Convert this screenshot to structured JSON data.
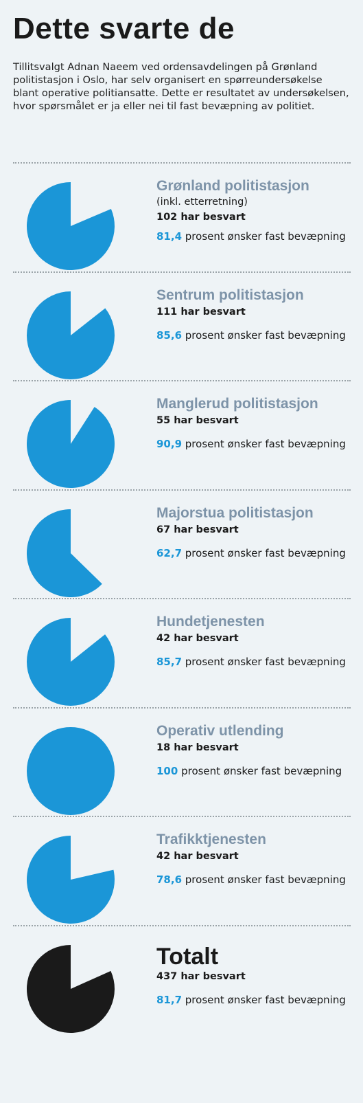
{
  "title": "Dette svarte de",
  "intro": "Tillitsvalgt Adnan Naeem ved ordensavdelingen på Grønland politistasjon i Oslo, har selv organisert en spørreundersøkelse blant operative politiansatte. Dette er resultatet av undersøkelsen, hvor spørsmålet er ja eller nei til fast bevæpning av politiet.",
  "colors": {
    "pie": "#1b96d7",
    "total_pie": "#1a1a1a",
    "station_label": "#7d93a8",
    "percent": "#1b96d7"
  },
  "pct_suffix": "prosent ønsker fast bevæpning",
  "chart_data": {
    "type": "pie",
    "units": "prosent ønsker fast bevæpning",
    "series": [
      {
        "name": "Grønland politistasjon",
        "note": "(inkl. etterretning)",
        "respondents_text": "102 har besvart",
        "percent_text": "81,4",
        "value": 81.4
      },
      {
        "name": "Sentrum politistasjon",
        "respondents_text": "111 har besvart",
        "percent_text": "85,6",
        "value": 85.6
      },
      {
        "name": "Manglerud politistasjon",
        "respondents_text": "55 har besvart",
        "percent_text": "90,9",
        "value": 90.9
      },
      {
        "name": "Majorstua politistasjon",
        "respondents_text": "67 har besvart",
        "percent_text": "62,7",
        "value": 62.7
      },
      {
        "name": "Hundetjenesten",
        "respondents_text": "42 har besvart",
        "percent_text": "85,7",
        "value": 85.7
      },
      {
        "name": "Operativ utlending",
        "respondents_text": "18 har besvart",
        "percent_text": "100",
        "value": 100
      },
      {
        "name": "Trafikktjenesten",
        "respondents_text": "42 har besvart",
        "percent_text": "78,6",
        "value": 78.6
      }
    ],
    "total": {
      "name": "Totalt",
      "respondents_text": "437 har besvart",
      "percent_text": "81,7",
      "value": 81.7
    }
  }
}
